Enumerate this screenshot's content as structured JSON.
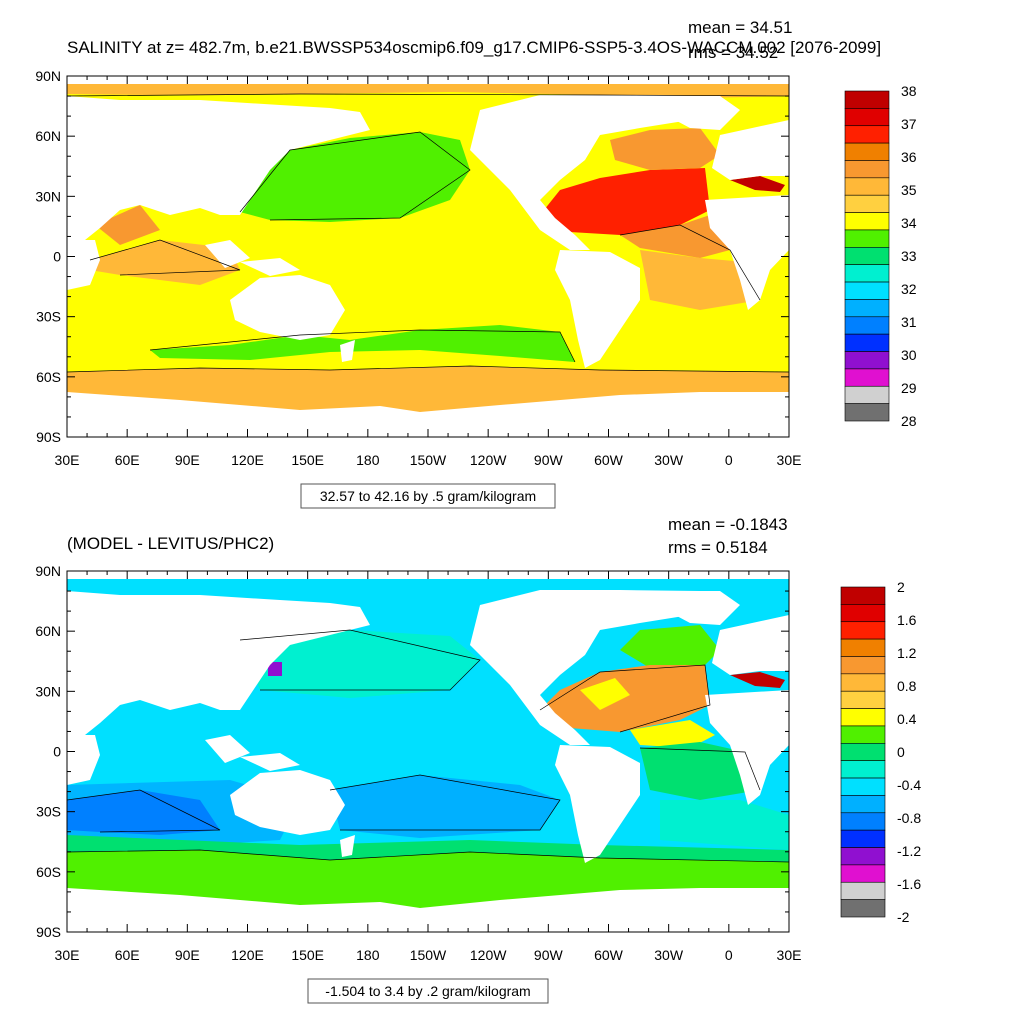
{
  "panels": [
    {
      "title": "SALINITY at z= 482.7m, b.e21.BWSSP534oscmip6.f09_g17.CMIP6-SSP5-3.4OS-WACCM.002 [2076-2099]",
      "mean_text": "mean = 34.51",
      "rms_text": "rms = 34.52",
      "range_text": "32.57 to 42.16 by .5 gram/kilogram",
      "lat_labels": [
        "90N",
        "60N",
        "30N",
        "0",
        "30S",
        "60S",
        "90S"
      ],
      "lon_labels": [
        "30E",
        "60E",
        "90E",
        "120E",
        "150E",
        "180",
        "150W",
        "120W",
        "90W",
        "60W",
        "30W",
        "0",
        "30E"
      ],
      "colorbar": {
        "colors": [
          "#c00000",
          "#e00000",
          "#ff2000",
          "#f08000",
          "#f89830",
          "#ffb838",
          "#ffd040",
          "#ffff00",
          "#50f000",
          "#00e070",
          "#00f0d0",
          "#00e0ff",
          "#00b0ff",
          "#0080ff",
          "#0030ff",
          "#9010d0",
          "#e010d0",
          "#d0d0d0",
          "#707070"
        ],
        "labels": [
          "38",
          "37",
          "36",
          "35",
          "34",
          "33",
          "32",
          "31",
          "30",
          "29",
          "28"
        ]
      }
    },
    {
      "title": "(MODEL - LEVITUS/PHC2)",
      "mean_text": "mean = -0.1843",
      "rms_text": "rms = 0.5184",
      "range_text": "-1.504 to 3.4 by .2 gram/kilogram",
      "lat_labels": [
        "90N",
        "60N",
        "30N",
        "0",
        "30S",
        "60S",
        "90S"
      ],
      "lon_labels": [
        "30E",
        "60E",
        "90E",
        "120E",
        "150E",
        "180",
        "150W",
        "120W",
        "90W",
        "60W",
        "30W",
        "0",
        "30E"
      ],
      "colorbar": {
        "colors": [
          "#c00000",
          "#e00000",
          "#ff2000",
          "#f08000",
          "#f89830",
          "#ffb838",
          "#ffd040",
          "#ffff00",
          "#50f000",
          "#00e070",
          "#00f0d0",
          "#00e0ff",
          "#00b0ff",
          "#0080ff",
          "#0030ff",
          "#9010d0",
          "#e010d0",
          "#d0d0d0",
          "#707070"
        ],
        "labels": [
          "2",
          "1.6",
          "1.2",
          "0.8",
          "0.4",
          "0",
          "-0.4",
          "-0.8",
          "-1.2",
          "-1.6",
          "-2"
        ]
      }
    }
  ]
}
